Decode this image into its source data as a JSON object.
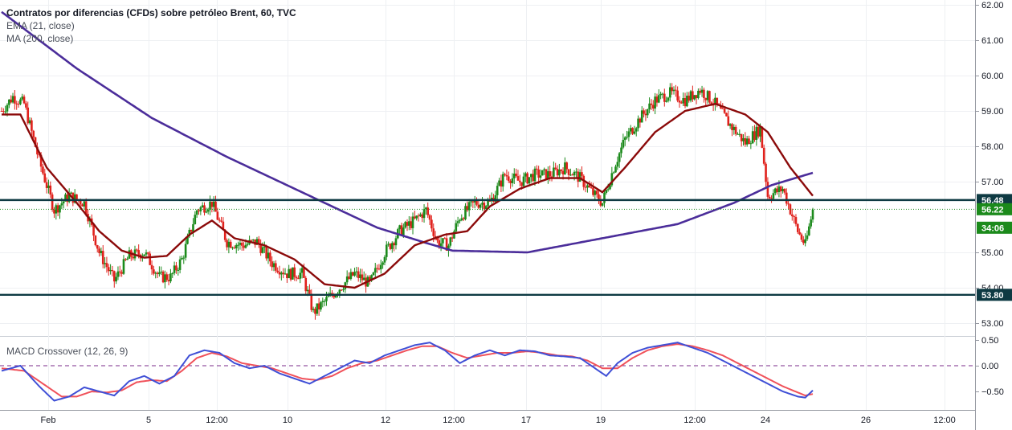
{
  "header": {
    "title": "Contratos por diferencias (CFDs) sobre petróleo Brent, 60, TVC",
    "indicator1": "EMA (21, close)",
    "indicator2": "MA (200, close)",
    "macd_label": "MACD Crossover (12, 26, 9)"
  },
  "colors": {
    "up": "#1b8a1b",
    "down": "#e0211c",
    "ema": "#8b0a0a",
    "ma": "#4b2d9a",
    "level": "#0e3a43",
    "macd": "#3f4fd6",
    "signal": "#f0515a",
    "price_tag": "#1b8a1b"
  },
  "chart_data": [
    {
      "type": "candlestick",
      "title": "Contratos por diferencias (CFDs) sobre petróleo Brent, 60, TVC",
      "y_ticks": [
        "62.00",
        "61.00",
        "60.00",
        "59.00",
        "58.00",
        "57.00",
        "55.00",
        "54.00",
        "53.00"
      ],
      "ylim": [
        52.6,
        62.2
      ],
      "x_ticks": [
        "Feb",
        "5",
        "12:00",
        "10",
        "12",
        "12:00",
        "17",
        "19",
        "12:00",
        "24",
        "26",
        "12:00"
      ],
      "price_path": [
        {
          "t": 0,
          "p": 59.0
        },
        {
          "t": 3,
          "p": 59.4
        },
        {
          "t": 6,
          "p": 59.2
        },
        {
          "t": 10,
          "p": 57.6
        },
        {
          "t": 14,
          "p": 56.2
        },
        {
          "t": 18,
          "p": 56.6
        },
        {
          "t": 22,
          "p": 56.4
        },
        {
          "t": 26,
          "p": 55.0
        },
        {
          "t": 30,
          "p": 54.2
        },
        {
          "t": 34,
          "p": 54.9
        },
        {
          "t": 38,
          "p": 55.0
        },
        {
          "t": 42,
          "p": 54.3
        },
        {
          "t": 45,
          "p": 54.3
        },
        {
          "t": 48,
          "p": 54.8
        },
        {
          "t": 52,
          "p": 56.2
        },
        {
          "t": 56,
          "p": 56.4
        },
        {
          "t": 60,
          "p": 55.3
        },
        {
          "t": 64,
          "p": 55.2
        },
        {
          "t": 68,
          "p": 55.3
        },
        {
          "t": 72,
          "p": 54.7
        },
        {
          "t": 76,
          "p": 54.4
        },
        {
          "t": 80,
          "p": 54.4
        },
        {
          "t": 83,
          "p": 53.3
        },
        {
          "t": 86,
          "p": 53.6
        },
        {
          "t": 90,
          "p": 54.0
        },
        {
          "t": 94,
          "p": 54.4
        },
        {
          "t": 98,
          "p": 54.1
        },
        {
          "t": 102,
          "p": 55.0
        },
        {
          "t": 106,
          "p": 55.6
        },
        {
          "t": 110,
          "p": 55.9
        },
        {
          "t": 113,
          "p": 56.2
        },
        {
          "t": 116,
          "p": 55.3
        },
        {
          "t": 119,
          "p": 55.2
        },
        {
          "t": 122,
          "p": 56.0
        },
        {
          "t": 126,
          "p": 56.4
        },
        {
          "t": 130,
          "p": 56.4
        },
        {
          "t": 134,
          "p": 57.2
        },
        {
          "t": 138,
          "p": 57.0
        },
        {
          "t": 142,
          "p": 57.2
        },
        {
          "t": 146,
          "p": 57.2
        },
        {
          "t": 150,
          "p": 57.4
        },
        {
          "t": 154,
          "p": 57.1
        },
        {
          "t": 158,
          "p": 56.6
        },
        {
          "t": 160,
          "p": 56.4
        },
        {
          "t": 163,
          "p": 57.4
        },
        {
          "t": 166,
          "p": 58.2
        },
        {
          "t": 170,
          "p": 58.8
        },
        {
          "t": 174,
          "p": 59.3
        },
        {
          "t": 178,
          "p": 59.5
        },
        {
          "t": 182,
          "p": 59.3
        },
        {
          "t": 186,
          "p": 59.6
        },
        {
          "t": 190,
          "p": 59.2
        },
        {
          "t": 194,
          "p": 58.6
        },
        {
          "t": 198,
          "p": 58.1
        },
        {
          "t": 202,
          "p": 58.5
        },
        {
          "t": 204,
          "p": 56.6
        },
        {
          "t": 208,
          "p": 56.8
        },
        {
          "t": 212,
          "p": 55.6
        },
        {
          "t": 214,
          "p": 55.2
        },
        {
          "t": 216,
          "p": 56.2
        }
      ],
      "ema_21": [
        {
          "t": 0,
          "p": 58.9
        },
        {
          "t": 5,
          "p": 58.9
        },
        {
          "t": 12,
          "p": 57.4
        },
        {
          "t": 20,
          "p": 56.4
        },
        {
          "t": 26,
          "p": 55.6
        },
        {
          "t": 32,
          "p": 55.05
        },
        {
          "t": 38,
          "p": 54.85
        },
        {
          "t": 44,
          "p": 54.9
        },
        {
          "t": 50,
          "p": 55.5
        },
        {
          "t": 56,
          "p": 55.9
        },
        {
          "t": 62,
          "p": 55.4
        },
        {
          "t": 70,
          "p": 55.2
        },
        {
          "t": 78,
          "p": 54.8
        },
        {
          "t": 86,
          "p": 54.1
        },
        {
          "t": 94,
          "p": 54.0
        },
        {
          "t": 102,
          "p": 54.4
        },
        {
          "t": 110,
          "p": 55.2
        },
        {
          "t": 118,
          "p": 55.5
        },
        {
          "t": 124,
          "p": 55.6
        },
        {
          "t": 130,
          "p": 56.3
        },
        {
          "t": 138,
          "p": 56.8
        },
        {
          "t": 146,
          "p": 57.1
        },
        {
          "t": 154,
          "p": 57.1
        },
        {
          "t": 160,
          "p": 56.7
        },
        {
          "t": 166,
          "p": 57.4
        },
        {
          "t": 174,
          "p": 58.4
        },
        {
          "t": 182,
          "p": 59.0
        },
        {
          "t": 190,
          "p": 59.2
        },
        {
          "t": 198,
          "p": 58.9
        },
        {
          "t": 204,
          "p": 58.4
        },
        {
          "t": 210,
          "p": 57.4
        },
        {
          "t": 216,
          "p": 56.6
        }
      ],
      "ma_200": [
        {
          "t": 0,
          "p": 61.8
        },
        {
          "t": 20,
          "p": 60.2
        },
        {
          "t": 40,
          "p": 58.8
        },
        {
          "t": 60,
          "p": 57.7
        },
        {
          "t": 80,
          "p": 56.7
        },
        {
          "t": 100,
          "p": 55.7
        },
        {
          "t": 112,
          "p": 55.3
        },
        {
          "t": 120,
          "p": 55.05
        },
        {
          "t": 140,
          "p": 55.0
        },
        {
          "t": 160,
          "p": 55.4
        },
        {
          "t": 180,
          "p": 55.8
        },
        {
          "t": 195,
          "p": 56.4
        },
        {
          "t": 205,
          "p": 56.9
        },
        {
          "t": 216,
          "p": 57.25
        }
      ],
      "levels": [
        56.48,
        53.8
      ],
      "last_price": 56.22,
      "labels": [
        "56.48",
        "56.22",
        "34:06",
        "53.80"
      ]
    },
    {
      "type": "line",
      "title": "MACD Crossover (12, 26, 9)",
      "y_ticks": [
        "0.50",
        "0.00",
        "−0.50"
      ],
      "ylim": [
        -0.78,
        0.55
      ],
      "series": [
        {
          "values": [
            {
              "t": 0,
              "v": -0.1
            },
            {
              "t": 5,
              "v": 0.0
            },
            {
              "t": 10,
              "v": -0.4
            },
            {
              "t": 14,
              "v": -0.68
            },
            {
              "t": 18,
              "v": -0.6
            },
            {
              "t": 22,
              "v": -0.42
            },
            {
              "t": 26,
              "v": -0.5
            },
            {
              "t": 30,
              "v": -0.58
            },
            {
              "t": 34,
              "v": -0.3
            },
            {
              "t": 38,
              "v": -0.2
            },
            {
              "t": 42,
              "v": -0.35
            },
            {
              "t": 46,
              "v": -0.2
            },
            {
              "t": 50,
              "v": 0.2
            },
            {
              "t": 54,
              "v": 0.3
            },
            {
              "t": 58,
              "v": 0.25
            },
            {
              "t": 62,
              "v": 0.05
            },
            {
              "t": 66,
              "v": -0.05
            },
            {
              "t": 70,
              "v": 0.0
            },
            {
              "t": 74,
              "v": -0.15
            },
            {
              "t": 78,
              "v": -0.25
            },
            {
              "t": 82,
              "v": -0.35
            },
            {
              "t": 86,
              "v": -0.2
            },
            {
              "t": 90,
              "v": -0.05
            },
            {
              "t": 94,
              "v": 0.1
            },
            {
              "t": 98,
              "v": 0.05
            },
            {
              "t": 102,
              "v": 0.2
            },
            {
              "t": 106,
              "v": 0.3
            },
            {
              "t": 110,
              "v": 0.4
            },
            {
              "t": 114,
              "v": 0.45
            },
            {
              "t": 118,
              "v": 0.3
            },
            {
              "t": 122,
              "v": 0.05
            },
            {
              "t": 126,
              "v": 0.2
            },
            {
              "t": 130,
              "v": 0.3
            },
            {
              "t": 134,
              "v": 0.2
            },
            {
              "t": 138,
              "v": 0.3
            },
            {
              "t": 142,
              "v": 0.28
            },
            {
              "t": 146,
              "v": 0.2
            },
            {
              "t": 150,
              "v": 0.18
            },
            {
              "t": 154,
              "v": 0.15
            },
            {
              "t": 158,
              "v": -0.05
            },
            {
              "t": 161,
              "v": -0.2
            },
            {
              "t": 164,
              "v": 0.05
            },
            {
              "t": 168,
              "v": 0.25
            },
            {
              "t": 172,
              "v": 0.35
            },
            {
              "t": 176,
              "v": 0.4
            },
            {
              "t": 180,
              "v": 0.45
            },
            {
              "t": 184,
              "v": 0.35
            },
            {
              "t": 188,
              "v": 0.25
            },
            {
              "t": 192,
              "v": 0.1
            },
            {
              "t": 196,
              "v": -0.05
            },
            {
              "t": 200,
              "v": -0.2
            },
            {
              "t": 204,
              "v": -0.35
            },
            {
              "t": 208,
              "v": -0.5
            },
            {
              "t": 212,
              "v": -0.6
            },
            {
              "t": 214,
              "v": -0.62
            },
            {
              "t": 216,
              "v": -0.48
            }
          ]
        },
        {
          "values": [
            {
              "t": 0,
              "v": -0.05
            },
            {
              "t": 6,
              "v": -0.1
            },
            {
              "t": 12,
              "v": -0.4
            },
            {
              "t": 16,
              "v": -0.6
            },
            {
              "t": 20,
              "v": -0.6
            },
            {
              "t": 24,
              "v": -0.5
            },
            {
              "t": 28,
              "v": -0.52
            },
            {
              "t": 32,
              "v": -0.48
            },
            {
              "t": 36,
              "v": -0.32
            },
            {
              "t": 40,
              "v": -0.28
            },
            {
              "t": 44,
              "v": -0.3
            },
            {
              "t": 48,
              "v": -0.1
            },
            {
              "t": 52,
              "v": 0.15
            },
            {
              "t": 56,
              "v": 0.25
            },
            {
              "t": 60,
              "v": 0.18
            },
            {
              "t": 64,
              "v": 0.05
            },
            {
              "t": 68,
              "v": 0.0
            },
            {
              "t": 72,
              "v": -0.05
            },
            {
              "t": 76,
              "v": -0.15
            },
            {
              "t": 80,
              "v": -0.25
            },
            {
              "t": 84,
              "v": -0.28
            },
            {
              "t": 88,
              "v": -0.2
            },
            {
              "t": 92,
              "v": -0.05
            },
            {
              "t": 96,
              "v": 0.05
            },
            {
              "t": 100,
              "v": 0.1
            },
            {
              "t": 104,
              "v": 0.2
            },
            {
              "t": 108,
              "v": 0.3
            },
            {
              "t": 112,
              "v": 0.38
            },
            {
              "t": 116,
              "v": 0.38
            },
            {
              "t": 120,
              "v": 0.25
            },
            {
              "t": 124,
              "v": 0.15
            },
            {
              "t": 128,
              "v": 0.2
            },
            {
              "t": 132,
              "v": 0.25
            },
            {
              "t": 136,
              "v": 0.25
            },
            {
              "t": 140,
              "v": 0.28
            },
            {
              "t": 144,
              "v": 0.25
            },
            {
              "t": 148,
              "v": 0.2
            },
            {
              "t": 152,
              "v": 0.18
            },
            {
              "t": 156,
              "v": 0.1
            },
            {
              "t": 160,
              "v": -0.05
            },
            {
              "t": 164,
              "v": -0.05
            },
            {
              "t": 168,
              "v": 0.15
            },
            {
              "t": 172,
              "v": 0.3
            },
            {
              "t": 176,
              "v": 0.38
            },
            {
              "t": 180,
              "v": 0.42
            },
            {
              "t": 184,
              "v": 0.38
            },
            {
              "t": 188,
              "v": 0.3
            },
            {
              "t": 192,
              "v": 0.2
            },
            {
              "t": 196,
              "v": 0.05
            },
            {
              "t": 200,
              "v": -0.1
            },
            {
              "t": 204,
              "v": -0.25
            },
            {
              "t": 208,
              "v": -0.4
            },
            {
              "t": 212,
              "v": -0.52
            },
            {
              "t": 214,
              "v": -0.58
            },
            {
              "t": 216,
              "v": -0.55
            }
          ]
        }
      ]
    }
  ]
}
